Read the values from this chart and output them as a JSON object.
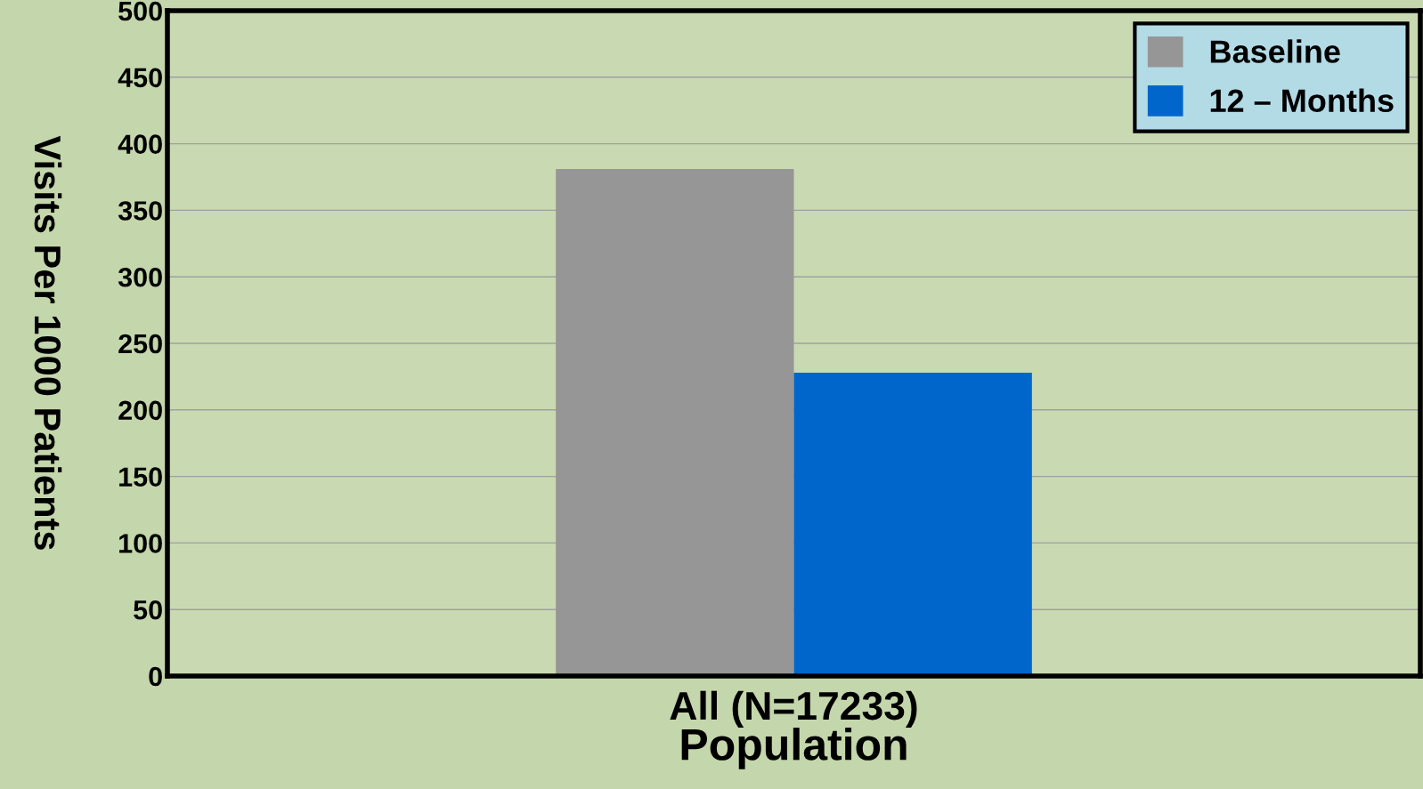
{
  "chart_data": {
    "type": "bar",
    "categories": [
      "All (N=17233)"
    ],
    "xlabel": "Population",
    "ylabel": "Visits Per 1000 Patients",
    "series": [
      {
        "name": "Baseline",
        "color": "#969696",
        "values": [
          381
        ]
      },
      {
        "name": "12 – Months",
        "color": "#0066cc",
        "values": [
          228
        ]
      }
    ],
    "ylim": [
      0,
      500
    ],
    "yticks": [
      0,
      50,
      100,
      150,
      200,
      250,
      300,
      350,
      400,
      450,
      500
    ],
    "grid": "y",
    "legend": "top right"
  }
}
